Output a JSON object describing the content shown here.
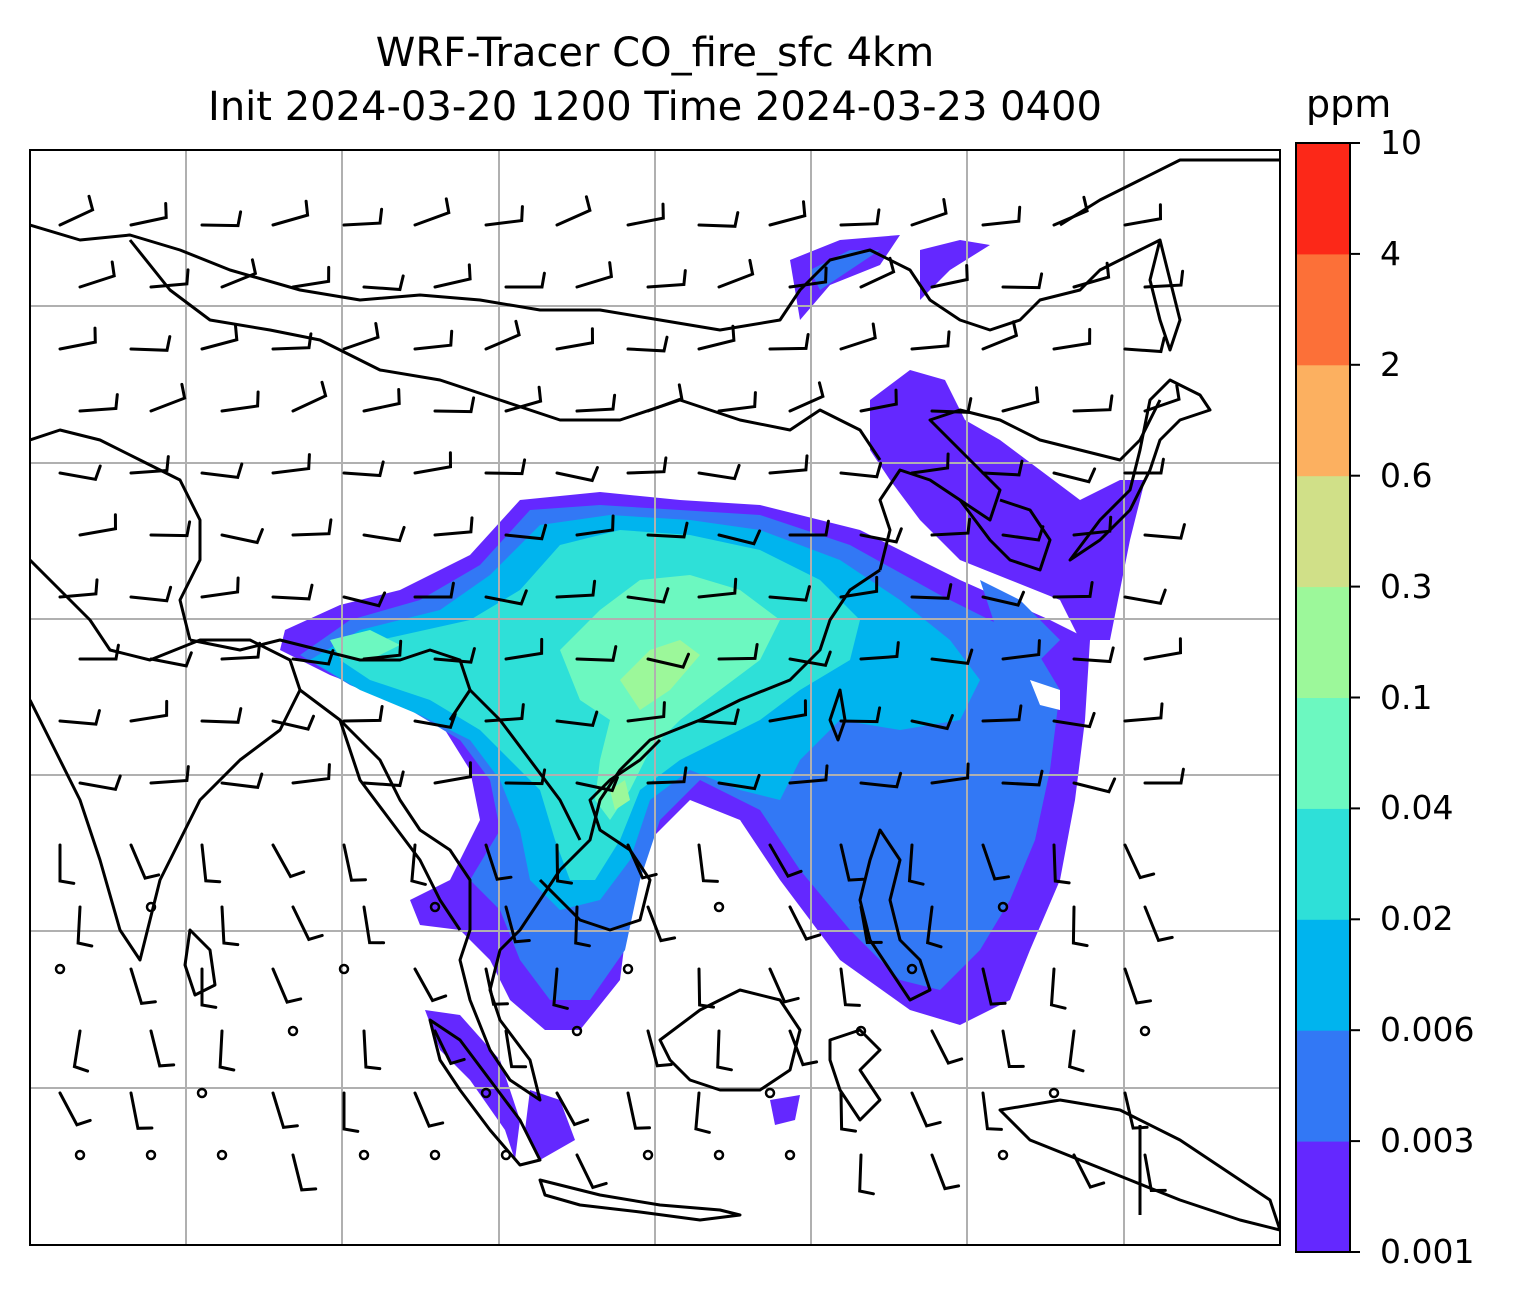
{
  "title_line1": "WRF-Tracer CO_fire_sfc 4km",
  "title_line2": "Init 2024-03-20 1200 Time 2024-03-23 0400",
  "colorbar": {
    "unit": "ppm",
    "levels": [
      "0.001",
      "0.003",
      "0.006",
      "0.02",
      "0.04",
      "0.1",
      "0.3",
      "0.6",
      "2",
      "4",
      "10"
    ],
    "colors": [
      "#6428ff",
      "#3278f5",
      "#00b4ee",
      "#2ee0d8",
      "#6cf8c0",
      "#9cf89a",
      "#d0e088",
      "#fcb060",
      "#fc7038",
      "#fc2818"
    ]
  },
  "layers": {
    "field": "CO_fire_sfc",
    "wind_barbs": true,
    "coastlines": true,
    "gridlines": true
  }
}
